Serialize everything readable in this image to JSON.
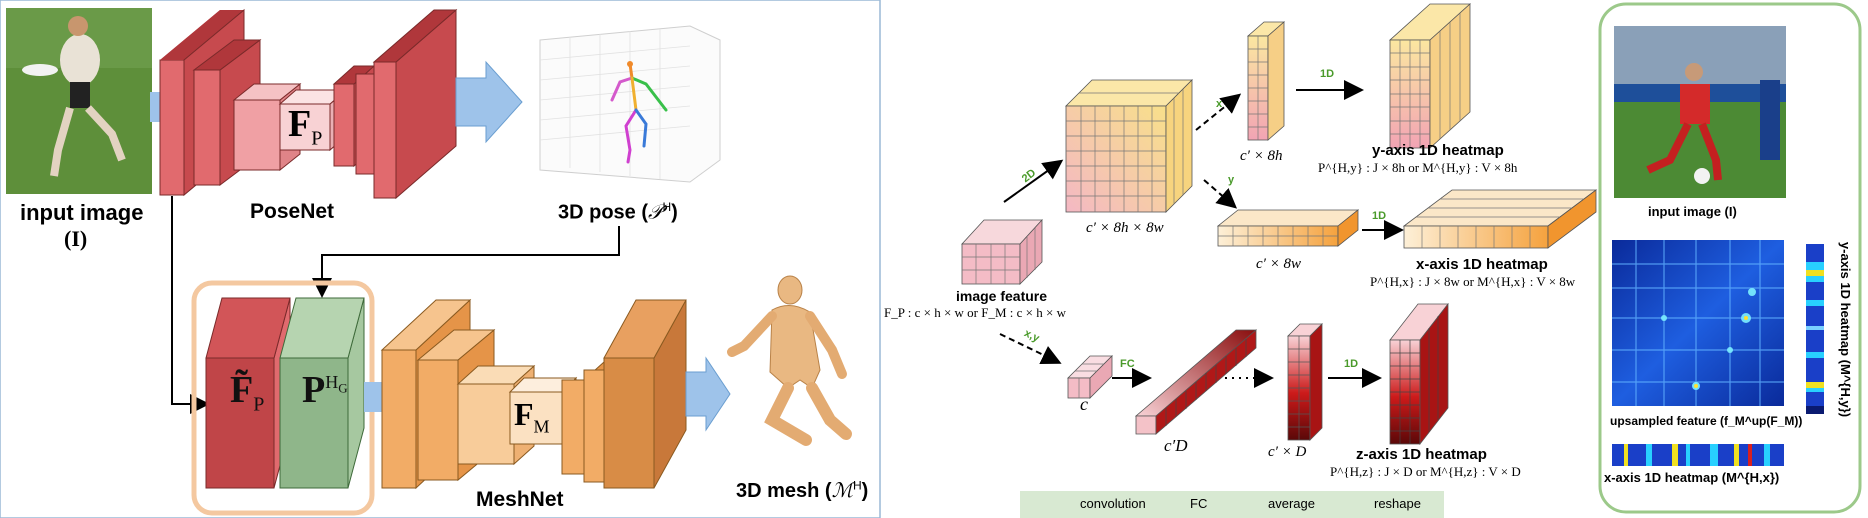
{
  "left_panel": {
    "input_image_label": "input image",
    "input_image_symbol": "(I)",
    "posenet_label": "PoseNet",
    "fp_symbol": "F",
    "fp_sub": "P",
    "pose3d_label": "3D pose (",
    "pose3d_symbol": "𝒫",
    "pose3d_sup": "H",
    "pose3d_close": ")",
    "fp_tilde_symbol": "F̃",
    "fp_tilde_sub": "P",
    "phg_symbol": "P",
    "phg_sup": "H",
    "phg_supsub": "G",
    "meshnet_label": "MeshNet",
    "fm_symbol": "F",
    "fm_sub": "M",
    "mesh3d_label": "3D mesh (",
    "mesh3d_symbol": "ℳ",
    "mesh3d_sup": "H",
    "mesh3d_close": ")"
  },
  "middle_panel": {
    "edge_2d": "2D",
    "edge_x": "x",
    "edge_y": "y",
    "edge_xy": "x,y",
    "edge_fc": "FC",
    "edge_1d_a": "1D",
    "edge_1d_b": "1D",
    "edge_1d_c": "1D",
    "image_feature_label": "image feature",
    "image_feature_formula": "F_P : c × h × w   or   F_M : c × h × w",
    "vol_label": "c′ × 8h × 8w",
    "y_col_label": "c′ × 8h",
    "x_row_label": "c′ × 8w",
    "c_label": "c",
    "cD_label": "c′D",
    "cxD_label": "c′ × D",
    "y_heatmap_title": "y-axis 1D heatmap",
    "y_heatmap_formula": "P^{H,y} : J × 8h   or   M^{H,y} : V × 8h",
    "x_heatmap_title": "x-axis 1D heatmap",
    "x_heatmap_formula": "P^{H,x} : J × 8w   or   M^{H,x} : V × 8w",
    "z_heatmap_title": "z-axis 1D heatmap",
    "z_heatmap_formula": "P^{H,z} : J × D   or   M^{H,z} : V × D",
    "legend": {
      "convolution": "convolution",
      "fc": "FC",
      "average": "average",
      "reshape": "reshape"
    }
  },
  "right_panel": {
    "input_image_label": "input image (I)",
    "upsampled_feature_label": "upsampled feature (f_M^up(F_M))",
    "y_heatmap_label": "y-axis 1D heatmap (M^{H,y})",
    "x_heatmap_label": "x-axis 1D heatmap (M^{H,x})"
  },
  "colors": {
    "posenet_red": "#d9585c",
    "meshnet_orange": "#f2ac66",
    "pg_green": "#8fb68a",
    "arrow_blue": "#9ec3ea",
    "highlight_box": "#f4c8a0",
    "panel_green": "#9cc98a",
    "legend_bg": "#d8e9d2"
  }
}
